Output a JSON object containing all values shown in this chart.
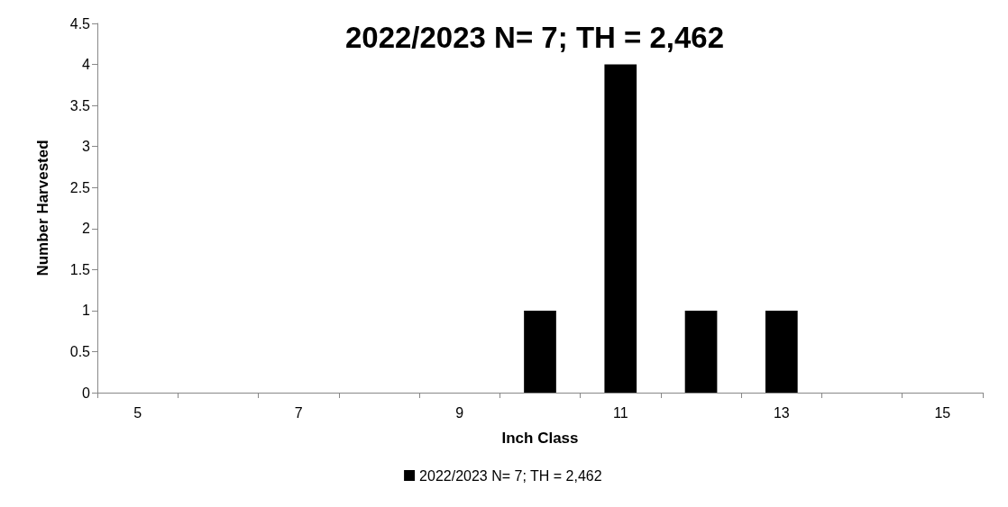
{
  "chart_data": {
    "type": "bar",
    "title": "2022/2023 N= 7; TH = 2,462",
    "xlabel": "Inch Class",
    "ylabel": "Number Harvested",
    "categories": [
      "5",
      null,
      "7",
      null,
      "9",
      null,
      "11",
      null,
      "13",
      null,
      "15"
    ],
    "series": [
      {
        "name": "2022/2023 N= 7; TH = 2,462",
        "color": "#000000",
        "values": [
          0,
          0,
          0,
          0,
          0,
          1,
          4,
          1,
          1,
          0,
          0
        ]
      }
    ],
    "ylim": [
      0,
      4.5
    ],
    "yticks": [
      0,
      0.5,
      1,
      1.5,
      2,
      2.5,
      3,
      3.5,
      4,
      4.5
    ],
    "grid": false,
    "legend": "bottom"
  }
}
